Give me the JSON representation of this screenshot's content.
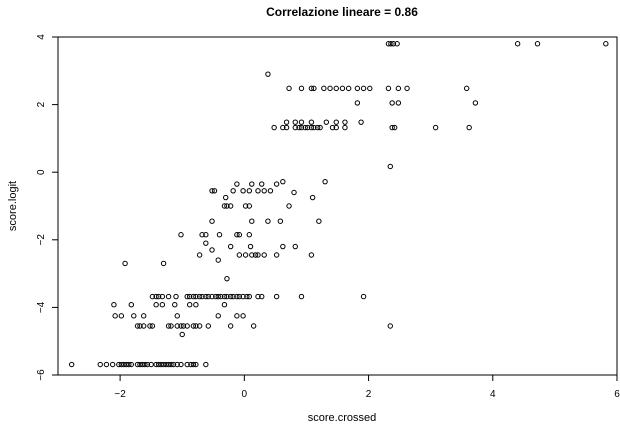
{
  "chart_data": {
    "type": "scatter",
    "title": "Correlazione lineare =  0.86",
    "xlabel": "score.crossed",
    "ylabel": "score.logit",
    "xlim": [
      -3.0,
      6.0
    ],
    "ylim": [
      -6.0,
      4.0
    ],
    "x_ticks": [
      -2,
      0,
      2,
      4,
      6
    ],
    "y_ticks": [
      -6,
      -4,
      -2,
      0,
      2,
      4
    ],
    "x_tick_labels": [
      "−2",
      "0",
      "2",
      "4",
      "6"
    ],
    "y_tick_labels": [
      "−6",
      "−4",
      "−2",
      "0",
      "2",
      "4"
    ],
    "grid": false,
    "marker": "open-circle",
    "points": [
      [
        -2.78,
        -5.69
      ],
      [
        -2.32,
        -5.69
      ],
      [
        -2.22,
        -5.69
      ],
      [
        -2.12,
        -5.69
      ],
      [
        -2.02,
        -5.69
      ],
      [
        -1.98,
        -5.69
      ],
      [
        -1.94,
        -5.69
      ],
      [
        -1.9,
        -5.69
      ],
      [
        -1.86,
        -5.69
      ],
      [
        -1.82,
        -5.69
      ],
      [
        -1.72,
        -5.69
      ],
      [
        -1.68,
        -5.69
      ],
      [
        -1.64,
        -5.69
      ],
      [
        -1.6,
        -5.69
      ],
      [
        -1.56,
        -5.69
      ],
      [
        -1.5,
        -5.69
      ],
      [
        -1.42,
        -5.69
      ],
      [
        -1.38,
        -5.69
      ],
      [
        -1.34,
        -5.69
      ],
      [
        -1.3,
        -5.69
      ],
      [
        -1.26,
        -5.69
      ],
      [
        -1.22,
        -5.69
      ],
      [
        -1.18,
        -5.69
      ],
      [
        -1.14,
        -5.69
      ],
      [
        -1.08,
        -5.69
      ],
      [
        -1.02,
        -5.69
      ],
      [
        -0.92,
        -5.69
      ],
      [
        -0.86,
        -5.69
      ],
      [
        -0.82,
        -5.69
      ],
      [
        -0.78,
        -5.69
      ],
      [
        -0.62,
        -5.69
      ],
      [
        -1.0,
        -4.8
      ],
      [
        -1.72,
        -4.55
      ],
      [
        -1.68,
        -4.55
      ],
      [
        -1.62,
        -4.55
      ],
      [
        -1.52,
        -4.55
      ],
      [
        -1.48,
        -4.55
      ],
      [
        -1.22,
        -4.55
      ],
      [
        -1.18,
        -4.55
      ],
      [
        -1.08,
        -4.55
      ],
      [
        -1.02,
        -4.55
      ],
      [
        -0.98,
        -4.55
      ],
      [
        -0.92,
        -4.55
      ],
      [
        -0.82,
        -4.55
      ],
      [
        -0.78,
        -4.55
      ],
      [
        -0.72,
        -4.55
      ],
      [
        -0.58,
        -4.55
      ],
      [
        -0.22,
        -4.55
      ],
      [
        0.15,
        -4.55
      ],
      [
        2.35,
        -4.55
      ],
      [
        -2.08,
        -4.25
      ],
      [
        -1.98,
        -4.25
      ],
      [
        -1.78,
        -4.25
      ],
      [
        -1.62,
        -4.25
      ],
      [
        -1.08,
        -4.25
      ],
      [
        -0.42,
        -4.25
      ],
      [
        -0.12,
        -4.25
      ],
      [
        -0.02,
        -4.25
      ],
      [
        -2.1,
        -3.92
      ],
      [
        -1.82,
        -3.92
      ],
      [
        -1.42,
        -3.92
      ],
      [
        -1.32,
        -3.92
      ],
      [
        -1.12,
        -3.92
      ],
      [
        -0.88,
        -3.92
      ],
      [
        -0.78,
        -3.92
      ],
      [
        -0.32,
        -3.92
      ],
      [
        -1.48,
        -3.68
      ],
      [
        -1.42,
        -3.68
      ],
      [
        -1.38,
        -3.68
      ],
      [
        -1.32,
        -3.68
      ],
      [
        -1.22,
        -3.68
      ],
      [
        -1.1,
        -3.68
      ],
      [
        -0.92,
        -3.68
      ],
      [
        -0.88,
        -3.68
      ],
      [
        -0.82,
        -3.68
      ],
      [
        -0.78,
        -3.68
      ],
      [
        -0.72,
        -3.68
      ],
      [
        -0.68,
        -3.68
      ],
      [
        -0.62,
        -3.68
      ],
      [
        -0.58,
        -3.68
      ],
      [
        -0.52,
        -3.68
      ],
      [
        -0.46,
        -3.68
      ],
      [
        -0.42,
        -3.68
      ],
      [
        -0.38,
        -3.68
      ],
      [
        -0.32,
        -3.68
      ],
      [
        -0.28,
        -3.68
      ],
      [
        -0.22,
        -3.68
      ],
      [
        -0.18,
        -3.68
      ],
      [
        -0.12,
        -3.68
      ],
      [
        -0.08,
        -3.68
      ],
      [
        -0.02,
        -3.68
      ],
      [
        0.04,
        -3.68
      ],
      [
        0.08,
        -3.68
      ],
      [
        0.22,
        -3.68
      ],
      [
        0.28,
        -3.68
      ],
      [
        0.52,
        -3.68
      ],
      [
        0.92,
        -3.68
      ],
      [
        1.92,
        -3.68
      ],
      [
        -0.28,
        -3.15
      ],
      [
        -1.3,
        -2.7
      ],
      [
        -1.92,
        -2.7
      ],
      [
        -0.42,
        -2.6
      ],
      [
        -0.08,
        -2.45
      ],
      [
        0.02,
        -2.45
      ],
      [
        0.12,
        -2.45
      ],
      [
        0.18,
        -2.45
      ],
      [
        0.22,
        -2.45
      ],
      [
        0.32,
        -2.45
      ],
      [
        0.52,
        -2.45
      ],
      [
        1.08,
        -2.45
      ],
      [
        -0.72,
        -2.45
      ],
      [
        -0.52,
        -2.3
      ],
      [
        -0.62,
        -2.1
      ],
      [
        -0.22,
        -2.2
      ],
      [
        0.1,
        -2.2
      ],
      [
        0.62,
        -2.2
      ],
      [
        0.82,
        -2.2
      ],
      [
        -1.02,
        -1.85
      ],
      [
        -0.68,
        -1.85
      ],
      [
        -0.62,
        -1.85
      ],
      [
        -0.4,
        -1.85
      ],
      [
        -0.12,
        -1.85
      ],
      [
        -0.08,
        -1.85
      ],
      [
        0.08,
        -1.85
      ],
      [
        -0.52,
        -1.45
      ],
      [
        0.12,
        -1.45
      ],
      [
        0.38,
        -1.45
      ],
      [
        0.58,
        -1.45
      ],
      [
        1.2,
        -1.45
      ],
      [
        -0.32,
        -1.0
      ],
      [
        -0.28,
        -1.0
      ],
      [
        -0.22,
        -1.0
      ],
      [
        0.02,
        -1.0
      ],
      [
        0.08,
        -1.0
      ],
      [
        0.72,
        -1.0
      ],
      [
        1.1,
        -0.75
      ],
      [
        -0.3,
        -0.75
      ],
      [
        -0.52,
        -0.55
      ],
      [
        -0.48,
        -0.55
      ],
      [
        -0.18,
        -0.55
      ],
      [
        -0.02,
        -0.55
      ],
      [
        0.08,
        -0.55
      ],
      [
        0.22,
        -0.55
      ],
      [
        0.32,
        -0.55
      ],
      [
        0.42,
        -0.55
      ],
      [
        0.8,
        -0.6
      ],
      [
        -0.12,
        -0.35
      ],
      [
        0.12,
        -0.35
      ],
      [
        0.52,
        -0.35
      ],
      [
        0.28,
        -0.35
      ],
      [
        0.62,
        -0.28
      ],
      [
        1.3,
        -0.28
      ],
      [
        2.35,
        0.17
      ],
      [
        0.48,
        1.32
      ],
      [
        0.62,
        1.32
      ],
      [
        0.68,
        1.32
      ],
      [
        0.82,
        1.32
      ],
      [
        0.88,
        1.32
      ],
      [
        0.92,
        1.32
      ],
      [
        0.98,
        1.32
      ],
      [
        1.02,
        1.32
      ],
      [
        1.08,
        1.32
      ],
      [
        1.12,
        1.32
      ],
      [
        1.18,
        1.32
      ],
      [
        1.22,
        1.32
      ],
      [
        1.42,
        1.32
      ],
      [
        1.48,
        1.32
      ],
      [
        1.62,
        1.32
      ],
      [
        2.38,
        1.32
      ],
      [
        2.42,
        1.32
      ],
      [
        3.08,
        1.32
      ],
      [
        3.62,
        1.32
      ],
      [
        0.68,
        1.48
      ],
      [
        0.82,
        1.48
      ],
      [
        0.92,
        1.48
      ],
      [
        1.08,
        1.48
      ],
      [
        1.32,
        1.48
      ],
      [
        1.48,
        1.48
      ],
      [
        1.62,
        1.48
      ],
      [
        1.88,
        1.48
      ],
      [
        2.38,
        2.05
      ],
      [
        2.48,
        2.05
      ],
      [
        1.82,
        2.05
      ],
      [
        3.72,
        2.05
      ],
      [
        0.72,
        2.48
      ],
      [
        0.92,
        2.48
      ],
      [
        1.08,
        2.48
      ],
      [
        1.12,
        2.48
      ],
      [
        1.28,
        2.48
      ],
      [
        1.38,
        2.48
      ],
      [
        1.48,
        2.48
      ],
      [
        1.58,
        2.48
      ],
      [
        1.68,
        2.48
      ],
      [
        1.82,
        2.48
      ],
      [
        1.92,
        2.48
      ],
      [
        2.02,
        2.48
      ],
      [
        2.32,
        2.48
      ],
      [
        2.48,
        2.48
      ],
      [
        2.62,
        2.48
      ],
      [
        3.58,
        2.48
      ],
      [
        0.38,
        2.9
      ],
      [
        2.32,
        3.8
      ],
      [
        2.36,
        3.8
      ],
      [
        2.4,
        3.8
      ],
      [
        2.46,
        3.8
      ],
      [
        4.4,
        3.8
      ],
      [
        4.72,
        3.8
      ],
      [
        5.82,
        3.8
      ]
    ]
  }
}
